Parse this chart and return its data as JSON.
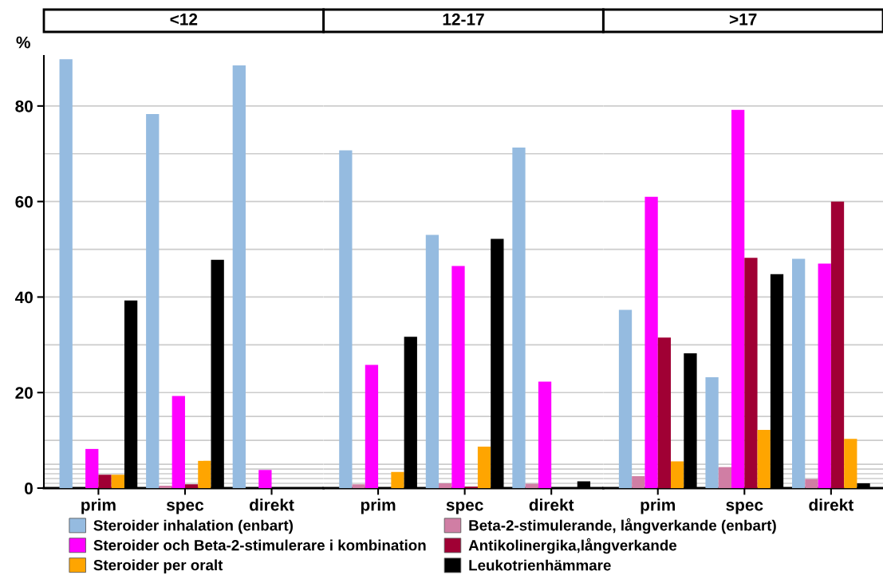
{
  "chart_data": [
    {
      "type": "bar",
      "title": "<12",
      "ylabel": "%",
      "categories": [
        "prim",
        "spec",
        "direkt"
      ],
      "ylim": [
        0,
        90.5
      ],
      "yticks": [
        0,
        {
          "value": 1,
          "label": null
        },
        {
          "value": 2,
          "label": null
        },
        {
          "value": 3,
          "label": null
        },
        {
          "value": 4,
          "label": null
        },
        {
          "value": 5,
          "label": null
        },
        {
          "value": 10,
          "label": null
        },
        {
          "value": 15,
          "label": null
        },
        20,
        {
          "value": 30,
          "label": null
        },
        40,
        {
          "value": 50,
          "label": null
        },
        60,
        {
          "value": 70,
          "label": null
        },
        80
      ],
      "grid": "y",
      "legend": "bottom",
      "series": [
        {
          "name": "Steroider inhalation (enbart)",
          "color": "#95bbe0",
          "values": [
            89.8,
            78.3,
            88.5
          ]
        },
        {
          "name": "Beta-2-stimulerande, långverkande (enbart)",
          "color": "#d07ea4",
          "values": [
            0,
            0.5,
            0
          ]
        },
        {
          "name": "Steroider och Beta-2-stimulerare i kombination",
          "color": "#ff00ff",
          "values": [
            8.2,
            19.3,
            3.8
          ]
        },
        {
          "name": "Antikolinergika,långverkande",
          "color": "#a00034",
          "values": [
            2.8,
            0.8,
            0
          ]
        },
        {
          "name": "Steroider per oralt",
          "color": "#ffa500",
          "values": [
            2.8,
            5.7,
            0
          ]
        },
        {
          "name": "Leukotrienhämmare",
          "color": "#000000",
          "values": [
            39.3,
            47.8,
            0
          ]
        }
      ]
    },
    {
      "type": "bar",
      "title": "12-17",
      "categories": [
        "prim",
        "spec",
        "direkt"
      ],
      "ylim": [
        0,
        90.5
      ],
      "yticks": [
        0,
        {
          "value": 1,
          "label": null
        },
        {
          "value": 2,
          "label": null
        },
        {
          "value": 3,
          "label": null
        },
        {
          "value": 4,
          "label": null
        },
        {
          "value": 5,
          "label": null
        },
        {
          "value": 10,
          "label": null
        },
        {
          "value": 15,
          "label": null
        },
        20,
        {
          "value": 30,
          "label": null
        },
        40,
        {
          "value": 50,
          "label": null
        },
        60,
        {
          "value": 70,
          "label": null
        },
        80
      ],
      "grid": "y",
      "tick_labels": "x",
      "series": [
        {
          "color": "#95bbe0",
          "values": [
            70.7,
            53.0,
            71.3
          ]
        },
        {
          "color": "#d07ea4",
          "values": [
            0.8,
            1.0,
            0.9
          ]
        },
        {
          "color": "#ff00ff",
          "values": [
            25.8,
            46.5,
            22.3
          ]
        },
        {
          "color": "#a00034",
          "values": [
            0,
            0.3,
            0
          ]
        },
        {
          "color": "#ffa500",
          "values": [
            3.4,
            8.7,
            0
          ]
        },
        {
          "color": "#000000",
          "values": [
            31.7,
            52.2,
            1.4
          ]
        }
      ]
    },
    {
      "type": "bar",
      "title": ">17",
      "categories": [
        "prim",
        "spec",
        "direkt"
      ],
      "ylim": [
        0,
        90.5
      ],
      "yticks": [
        0,
        {
          "value": 1,
          "label": null
        },
        {
          "value": 2,
          "label": null
        },
        {
          "value": 3,
          "label": null
        },
        {
          "value": 4,
          "label": null
        },
        {
          "value": 5,
          "label": null
        },
        {
          "value": 10,
          "label": null
        },
        {
          "value": 15,
          "label": null
        },
        20,
        {
          "value": 30,
          "label": null
        },
        40,
        {
          "value": 50,
          "label": null
        },
        60,
        {
          "value": 70,
          "label": null
        },
        80
      ],
      "grid": "y",
      "tick_labels": "x",
      "series": [
        {
          "color": "#95bbe0",
          "values": [
            37.3,
            23.2,
            48.0
          ]
        },
        {
          "color": "#d07ea4",
          "values": [
            2.5,
            4.4,
            1.9
          ]
        },
        {
          "color": "#ff00ff",
          "values": [
            61.0,
            79.2,
            47.0
          ]
        },
        {
          "color": "#a00034",
          "values": [
            31.5,
            48.2,
            60.0
          ]
        },
        {
          "color": "#ffa500",
          "values": [
            5.6,
            12.2,
            10.3
          ]
        },
        {
          "color": "#000000",
          "values": [
            28.2,
            44.8,
            1.0
          ]
        }
      ]
    }
  ]
}
